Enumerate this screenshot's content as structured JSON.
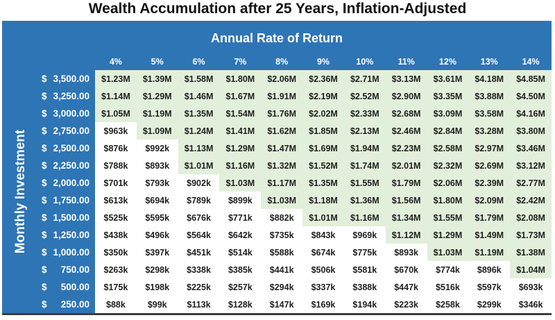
{
  "chart_data": {
    "type": "table",
    "title": "Wealth Accumulation after 25 Years, Inflation-Adjusted",
    "column_group_label": "Annual Rate of Return",
    "row_group_label": "Monthly Investment",
    "currency_symbol": "$",
    "columns": [
      "4%",
      "5%",
      "6%",
      "7%",
      "8%",
      "9%",
      "10%",
      "11%",
      "12%",
      "13%",
      "14%"
    ],
    "rows": [
      {
        "investment": "3,500.00",
        "values": [
          "$1.23M",
          "$1.39M",
          "$1.58M",
          "$1.80M",
          "$2.06M",
          "$2.36M",
          "$2.71M",
          "$3.13M",
          "$3.61M",
          "$4.18M",
          "$4.85M"
        ]
      },
      {
        "investment": "3,250.00",
        "values": [
          "$1.14M",
          "$1.29M",
          "$1.46M",
          "$1.67M",
          "$1.91M",
          "$2.19M",
          "$2.52M",
          "$2.90M",
          "$3.35M",
          "$3.88M",
          "$4.50M"
        ]
      },
      {
        "investment": "3,000.00",
        "values": [
          "$1.05M",
          "$1.19M",
          "$1.35M",
          "$1.54M",
          "$1.76M",
          "$2.02M",
          "$2.33M",
          "$2.68M",
          "$3.09M",
          "$3.58M",
          "$4.16M"
        ]
      },
      {
        "investment": "2,750.00",
        "values": [
          "$963k",
          "$1.09M",
          "$1.24M",
          "$1.41M",
          "$1.62M",
          "$1.85M",
          "$2.13M",
          "$2.46M",
          "$2.84M",
          "$3.28M",
          "$3.80M"
        ]
      },
      {
        "investment": "2,500.00",
        "values": [
          "$876k",
          "$992k",
          "$1.13M",
          "$1.29M",
          "$1.47M",
          "$1.69M",
          "$1.94M",
          "$2.23M",
          "$2.58M",
          "$2.97M",
          "$3.46M"
        ]
      },
      {
        "investment": "2,250.00",
        "values": [
          "$788k",
          "$893k",
          "$1.01M",
          "$1.16M",
          "$1.32M",
          "$1.52M",
          "$1.74M",
          "$2.01M",
          "$2.32M",
          "$2.69M",
          "$3.12M"
        ]
      },
      {
        "investment": "2,000.00",
        "values": [
          "$701k",
          "$793k",
          "$902k",
          "$1.03M",
          "$1.17M",
          "$1.35M",
          "$1.55M",
          "$1.79M",
          "$2.06M",
          "$2.39M",
          "$2.77M"
        ]
      },
      {
        "investment": "1,750.00",
        "values": [
          "$613k",
          "$694k",
          "$789k",
          "$899k",
          "$1.03M",
          "$1.18M",
          "$1.36M",
          "$1.56M",
          "$1.80M",
          "$2.09M",
          "$2.42M"
        ]
      },
      {
        "investment": "1,500.00",
        "values": [
          "$525k",
          "$595k",
          "$676k",
          "$771k",
          "$882k",
          "$1.01M",
          "$1.16M",
          "$1.34M",
          "$1.55M",
          "$1.79M",
          "$2.08M"
        ]
      },
      {
        "investment": "1,250.00",
        "values": [
          "$438k",
          "$496k",
          "$564k",
          "$642k",
          "$735k",
          "$843k",
          "$969k",
          "$1.12M",
          "$1.29M",
          "$1.49M",
          "$1.73M"
        ]
      },
      {
        "investment": "1,000.00",
        "values": [
          "$350k",
          "$397k",
          "$451k",
          "$514k",
          "$588k",
          "$674k",
          "$775k",
          "$893k",
          "$1.03M",
          "$1.19M",
          "$1.38M"
        ]
      },
      {
        "investment": "750.00",
        "values": [
          "$263k",
          "$298k",
          "$338k",
          "$385k",
          "$441k",
          "$506k",
          "$581k",
          "$670k",
          "$774k",
          "$896k",
          "$1.04M"
        ]
      },
      {
        "investment": "500.00",
        "values": [
          "$175k",
          "$198k",
          "$225k",
          "$257k",
          "$294k",
          "$337k",
          "$388k",
          "$447k",
          "$516k",
          "$597k",
          "$693k"
        ]
      },
      {
        "investment": "250.00",
        "values": [
          "$88k",
          "$99k",
          "$113k",
          "$128k",
          "$147k",
          "$169k",
          "$194k",
          "$223k",
          "$258k",
          "$299k",
          "$346k"
        ]
      }
    ],
    "conditional_format": "cells with values of $1M or more shaded light green; cells under $1M on white",
    "colors": {
      "panel_blue": "#2E75B6",
      "cell_green": "#E2EFDA",
      "cell_white": "#FFFFFF",
      "header_text": "#FFFFFF",
      "cell_text": "#1F1F1F",
      "title_text": "#111111",
      "bottom_border": "#3D3D3D"
    }
  }
}
